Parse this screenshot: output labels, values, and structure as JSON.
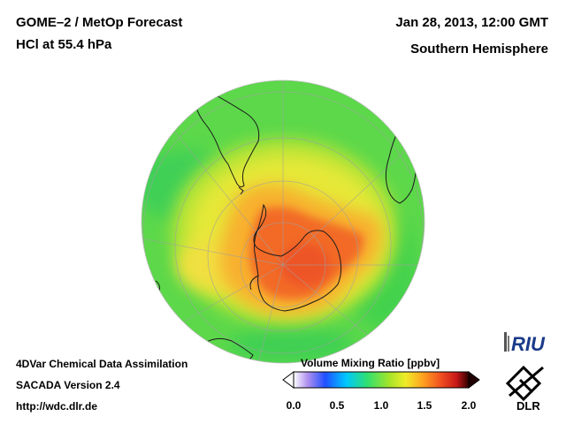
{
  "header": {
    "title_line1": "GOME–2 / MetOp Forecast",
    "title_line2": "HCl at 55.4 hPa",
    "date": "Jan 28, 2013, 12:00 GMT",
    "region": "Southern Hemisphere"
  },
  "footer": {
    "line1": "4DVar Chemical Data Assimilation",
    "line2": "SACADA Version 2.4",
    "url": "http://wdc.dlr.de"
  },
  "colorbar": {
    "title": "Volume Mixing Ratio [ppbv]",
    "min": 0.0,
    "max": 2.0,
    "ticks": [
      "0.0",
      "0.5",
      "1.0",
      "1.5",
      "2.0"
    ],
    "colors": [
      "#ffffff",
      "#8a2be2",
      "#1a4cff",
      "#00c8ff",
      "#28e07a",
      "#9ae62a",
      "#f2ee2a",
      "#ffa020",
      "#f05020",
      "#d01818",
      "#200000"
    ]
  },
  "map": {
    "projection": "orthographic-south-polar",
    "background_value_ppbv": 0.95,
    "polar_value_ppbv": 1.5
  },
  "logos": {
    "riu": "RIU",
    "dlr": "DLR"
  }
}
